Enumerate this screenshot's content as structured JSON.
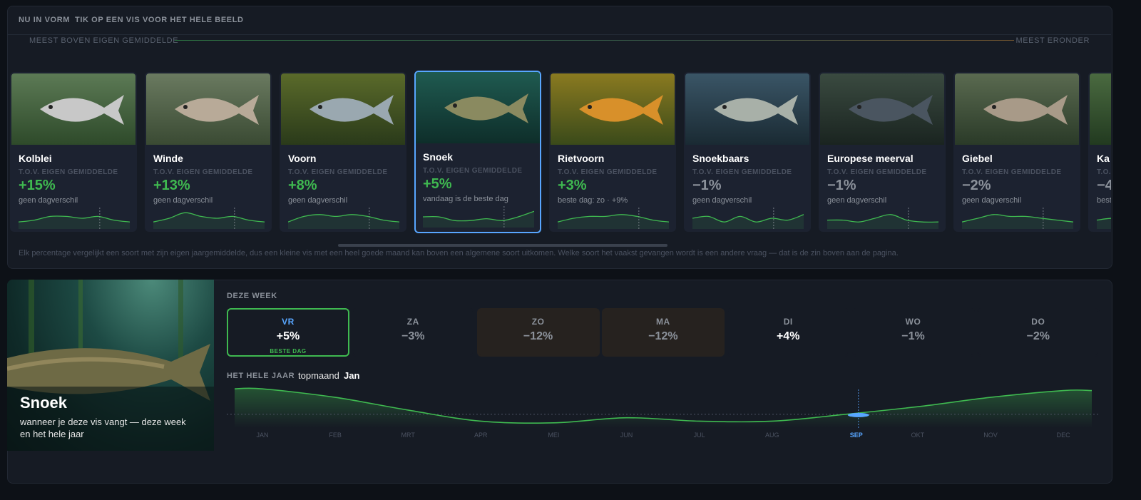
{
  "header": {
    "title": "NU IN VORM",
    "hint": "TIK OP EEN VIS VOOR HET HELE BEELD"
  },
  "scale": {
    "left": "MEEST BOVEN EIGEN GEMIDDELDE",
    "right": "MEEST ERONDER"
  },
  "spark_range": [
    0,
    10
  ],
  "cards": [
    {
      "name": "Kolblei",
      "subtitle": "T.O.V. EIGEN GEMIDDELDE",
      "change": "+15%",
      "note": "geen dagverschil",
      "color": "#3fb950",
      "selected": false,
      "spark": [
        3,
        4,
        6,
        6,
        5,
        6,
        4,
        3
      ]
    },
    {
      "name": "Winde",
      "subtitle": "T.O.V. EIGEN GEMIDDELDE",
      "change": "+13%",
      "note": "geen dagverschil",
      "color": "#3fb950",
      "selected": false,
      "spark": [
        3,
        5,
        8,
        6,
        5,
        6,
        4,
        3
      ]
    },
    {
      "name": "Voorn",
      "subtitle": "T.O.V. EIGEN GEMIDDELDE",
      "change": "+8%",
      "note": "geen dagverschil",
      "color": "#3fb950",
      "selected": false,
      "spark": [
        3,
        6,
        7,
        6,
        7,
        6,
        4,
        3
      ]
    },
    {
      "name": "Snoek",
      "subtitle": "T.O.V. EIGEN GEMIDDELDE",
      "change": "+5%",
      "note": "vandaag is de beste dag",
      "color": "#3fb950",
      "selected": true,
      "spark": [
        5,
        5,
        3,
        3,
        4,
        3,
        5,
        8
      ]
    },
    {
      "name": "Rietvoorn",
      "subtitle": "T.O.V. EIGEN GEMIDDELDE",
      "change": "+3%",
      "note": "beste dag: zo · +9%",
      "color": "#3fb950",
      "selected": false,
      "spark": [
        3,
        5,
        6,
        6,
        7,
        6,
        4,
        3
      ]
    },
    {
      "name": "Snoekbaars",
      "subtitle": "T.O.V. EIGEN GEMIDDELDE",
      "change": "−1%",
      "note": "geen dagverschil",
      "color": "#8b919a",
      "selected": false,
      "spark": [
        5,
        6,
        3,
        6,
        3,
        5,
        4,
        7
      ]
    },
    {
      "name": "Europese meerval",
      "subtitle": "T.O.V. EIGEN GEMIDDELDE",
      "change": "−1%",
      "note": "geen dagverschil",
      "color": "#8b919a",
      "selected": false,
      "spark": [
        4,
        4,
        3,
        5,
        7,
        4,
        3,
        3
      ]
    },
    {
      "name": "Giebel",
      "subtitle": "T.O.V. EIGEN GEMIDDELDE",
      "change": "−2%",
      "note": "geen dagverschil",
      "color": "#8b919a",
      "selected": false,
      "spark": [
        3,
        5,
        7,
        6,
        6,
        5,
        4,
        3
      ]
    },
    {
      "name": "Ka",
      "subtitle": "T.O.",
      "change": "−4",
      "note": "best",
      "color": "#8b919a",
      "selected": false,
      "spark": [
        4,
        5,
        4
      ]
    }
  ],
  "footnote": "Elk percentage vergelijkt een soort met zijn eigen jaargemiddelde, dus een kleine vis met een heel goede maand kan boven een algemene soort uitkomen. Welke soort het vaakst gevangen wordt is een andere vraag — dat is de zin boven aan de pagina.",
  "detail": {
    "name": "Snoek",
    "description": "wanneer je deze vis vangt — deze week en het hele jaar",
    "week_label": "DEZE WEEK",
    "days": [
      {
        "day": "VR",
        "change": "+5%",
        "badge": "BESTE DAG",
        "color": "#ffffff",
        "day_color": "#58a6ff",
        "bg": "#161b24",
        "border": "#3fb950"
      },
      {
        "day": "ZA",
        "change": "−3%",
        "color": "#8b919a",
        "day_color": "#8b919a",
        "bg": "#161b24",
        "border": "#161b24"
      },
      {
        "day": "ZO",
        "change": "−12%",
        "color": "#8b919a",
        "day_color": "#8b919a",
        "bg": "#26221f",
        "border": "#26221f"
      },
      {
        "day": "MA",
        "change": "−12%",
        "color": "#8b919a",
        "day_color": "#8b919a",
        "bg": "#26221f",
        "border": "#26221f"
      },
      {
        "day": "DI",
        "change": "+4%",
        "color": "#ffffff",
        "day_color": "#8b919a",
        "bg": "#161b24",
        "border": "#161b24"
      },
      {
        "day": "WO",
        "change": "−1%",
        "color": "#8b919a",
        "day_color": "#8b919a",
        "bg": "#161b24",
        "border": "#161b24"
      },
      {
        "day": "DO",
        "change": "−2%",
        "color": "#8b919a",
        "day_color": "#8b919a",
        "bg": "#161b24",
        "border": "#161b24"
      }
    ],
    "year_label": "HET HELE JAAR",
    "top_label": "topmaand",
    "top_month": "Jan",
    "year": {
      "type": "line",
      "categories": [
        "JAN",
        "FEB",
        "MRT",
        "APR",
        "MEI",
        "JUN",
        "JUL",
        "AUG",
        "SEP",
        "OKT",
        "NOV",
        "DEC"
      ],
      "values": [
        15,
        10,
        2.5,
        -4,
        -5,
        -2,
        -4,
        -4,
        0,
        4.5,
        10,
        14
      ],
      "ylim": [
        -8,
        18
      ],
      "current": 8,
      "color": "#3fb950"
    }
  }
}
